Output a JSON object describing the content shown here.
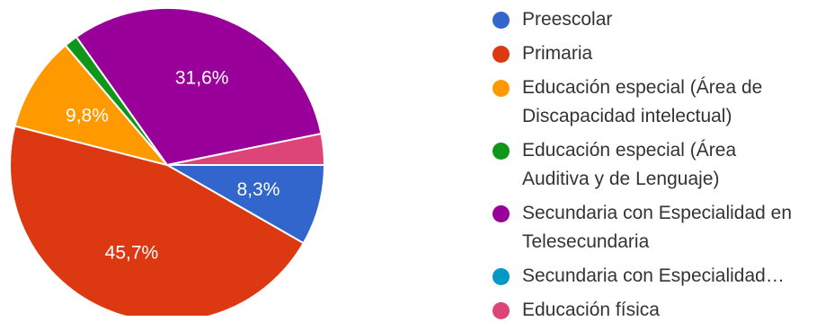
{
  "chart_data": {
    "type": "pie",
    "slices": [
      {
        "label": "Preescolar",
        "value": 8.3,
        "display": "8,3%",
        "color": "#3366cc"
      },
      {
        "label": "Primaria",
        "value": 45.7,
        "display": "45,7%",
        "color": "#dc3912"
      },
      {
        "label": "Educación especial (Área de Discapacidad intelectual)",
        "value": 9.8,
        "display": "9,8%",
        "color": "#ff9900"
      },
      {
        "label": "Educación especial (Área Auditiva y de Lenguaje)",
        "value": 1.4,
        "display": "",
        "color": "#109618"
      },
      {
        "label": "Secundaria con Especialidad en Telesecundaria",
        "value": 31.6,
        "display": "31,6%",
        "color": "#990099"
      },
      {
        "label": "Secundaria con Especialidad…",
        "value": 0,
        "display": "",
        "color": "#0099c6"
      },
      {
        "label": "Educación física",
        "value": 3.2,
        "display": "",
        "color": "#dd4477"
      }
    ],
    "legend_position": "right"
  },
  "legend": {
    "items": [
      {
        "text": "Preescolar",
        "color": "#3366cc"
      },
      {
        "text": "Primaria",
        "color": "#dc3912"
      },
      {
        "text": "Educación especial (Área de\nDiscapacidad intelectual)",
        "color": "#ff9900"
      },
      {
        "text": "Educación especial (Área\nAuditiva y de Lenguaje)",
        "color": "#109618"
      },
      {
        "text": "Secundaria con Especialidad en\nTelesecundaria",
        "color": "#990099"
      },
      {
        "text": "Secundaria con Especialidad…",
        "color": "#0099c6"
      },
      {
        "text": "Educación física",
        "color": "#dd4477"
      }
    ]
  }
}
